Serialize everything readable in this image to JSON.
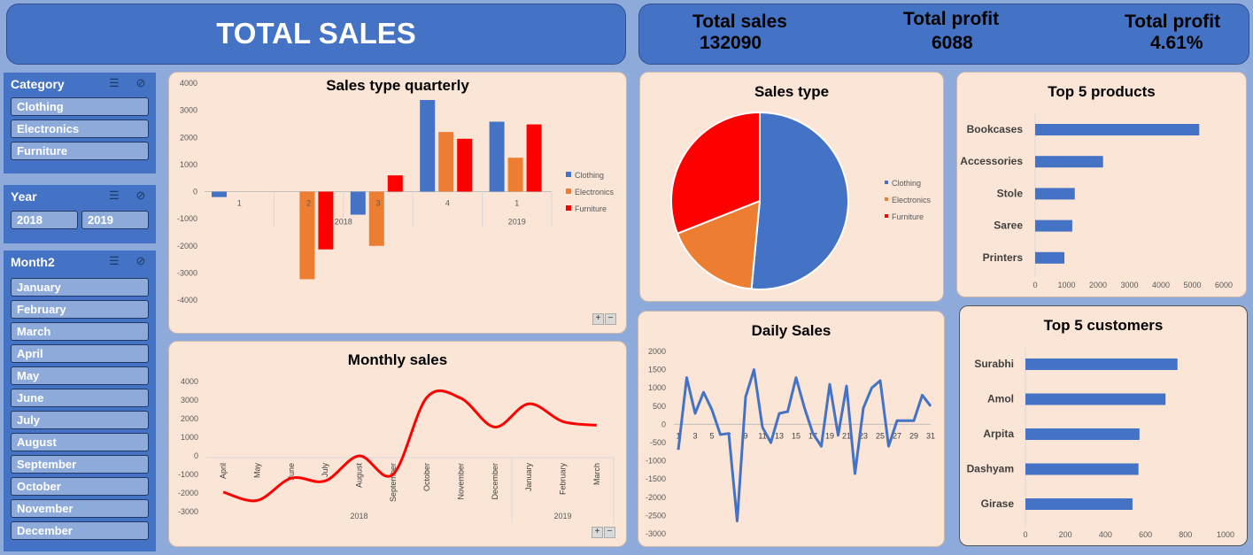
{
  "header": {
    "title": "TOTAL SALES"
  },
  "kpis": [
    {
      "label": "Total sales",
      "value": "132090"
    },
    {
      "label": "Total profit",
      "value": "6088"
    },
    {
      "label": "Total profit",
      "value": "4.61%"
    }
  ],
  "slicers": {
    "category": {
      "title": "Category",
      "items": [
        "Clothing",
        "Electronics",
        "Furniture"
      ]
    },
    "year": {
      "title": "Year",
      "items": [
        "2018",
        "2019"
      ]
    },
    "month": {
      "title": "Month2",
      "items": [
        "January",
        "February",
        "March",
        "April",
        "May",
        "June",
        "July",
        "August",
        "September",
        "October",
        "November",
        "December"
      ]
    }
  },
  "colors": {
    "clothing": "#4472c4",
    "electronics": "#ed7d31",
    "furniture": "#ff0000",
    "banner": "#4472c4",
    "panel": "#fbe5d6"
  },
  "chart_data": [
    {
      "id": "quarterly",
      "type": "bar",
      "title": "Sales type quarterly",
      "categories": [
        "1",
        "2",
        "3",
        "4",
        "1"
      ],
      "groups": [
        "2018",
        "2019"
      ],
      "group_of_category": [
        0,
        0,
        0,
        0,
        1
      ],
      "series": [
        {
          "name": "Clothing",
          "values": [
            -200,
            0,
            -850,
            3380,
            2580
          ]
        },
        {
          "name": "Electronics",
          "values": [
            0,
            -3230,
            -2000,
            2200,
            1250
          ]
        },
        {
          "name": "Furniture",
          "values": [
            0,
            -2130,
            600,
            1950,
            2480
          ]
        }
      ],
      "ylim": [
        -4000,
        4000
      ],
      "yticks": [
        4000,
        3000,
        2000,
        1000,
        0,
        -1000,
        -2000,
        -3000,
        -4000
      ],
      "legend": "right"
    },
    {
      "id": "monthly",
      "type": "line",
      "title": "Monthly sales",
      "categories": [
        "April",
        "May",
        "June",
        "July",
        "August",
        "September",
        "October",
        "November",
        "December",
        "January",
        "February",
        "March"
      ],
      "groups": [
        "2018",
        "2019"
      ],
      "values": [
        -1950,
        -2400,
        -1200,
        -1350,
        0,
        -1000,
        3150,
        3100,
        1550,
        2800,
        1850,
        1650
      ],
      "ylim": [
        -3000,
        4000
      ],
      "yticks": [
        4000,
        3000,
        2000,
        1000,
        0,
        -1000,
        -2000,
        -3000
      ]
    },
    {
      "id": "salestype",
      "type": "pie",
      "title": "Sales type",
      "labels": [
        "Clothing",
        "Electronics",
        "Furniture"
      ],
      "values": [
        51.5,
        17.5,
        31.0
      ],
      "legend": "right"
    },
    {
      "id": "top5products",
      "type": "bar",
      "orientation": "horizontal",
      "title": "Top 5 products",
      "categories": [
        "Bookcases",
        "Accessories",
        "Stole",
        "Saree",
        "Printers"
      ],
      "values": [
        5220,
        2160,
        1260,
        1180,
        930
      ],
      "xlim": [
        0,
        6000
      ],
      "xticks": [
        0,
        1000,
        2000,
        3000,
        4000,
        5000,
        6000
      ]
    },
    {
      "id": "top5customers",
      "type": "bar",
      "orientation": "horizontal",
      "title": "Top 5 customers",
      "categories": [
        "Surabhi",
        "Amol",
        "Arpita",
        "Dashyam",
        "Girase"
      ],
      "values": [
        760,
        700,
        570,
        565,
        535
      ],
      "xlim": [
        0,
        1000
      ],
      "xticks": [
        0,
        200,
        400,
        600,
        800,
        1000
      ]
    },
    {
      "id": "daily",
      "type": "line",
      "title": "Daily Sales",
      "x": [
        1,
        2,
        3,
        4,
        5,
        6,
        7,
        8,
        9,
        10,
        11,
        12,
        13,
        14,
        15,
        16,
        17,
        18,
        19,
        20,
        21,
        22,
        23,
        24,
        25,
        26,
        27,
        28,
        29,
        30,
        31
      ],
      "xticks": [
        "1",
        "3",
        "5",
        "7",
        "9",
        "11",
        "13",
        "15",
        "17",
        "19",
        "21",
        "23",
        "25",
        "27",
        "29",
        "31"
      ],
      "values": [
        -700,
        1280,
        300,
        880,
        400,
        -280,
        -250,
        -2650,
        750,
        1500,
        -80,
        -500,
        300,
        350,
        1280,
        450,
        -250,
        -600,
        1100,
        -300,
        1050,
        -1350,
        450,
        1000,
        1200,
        -600,
        100,
        100,
        100,
        800,
        500
      ],
      "ylim": [
        -3000,
        2000
      ],
      "yticks": [
        2000,
        1500,
        1000,
        500,
        0,
        -500,
        -1000,
        -1500,
        -2000,
        -2500,
        -3000
      ]
    }
  ]
}
